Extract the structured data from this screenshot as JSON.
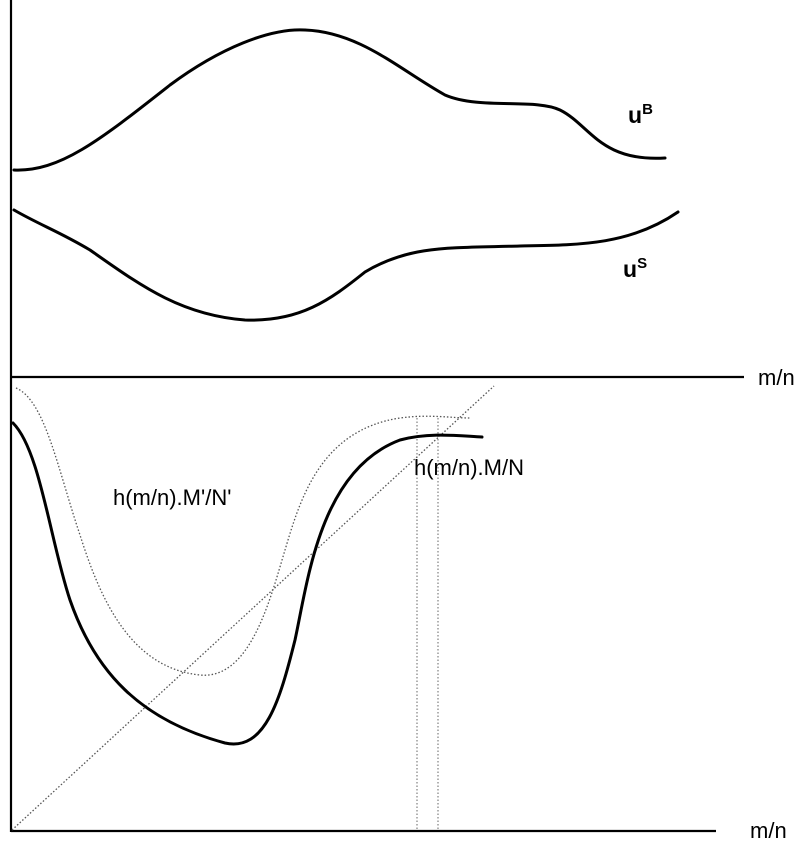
{
  "top_panel": {
    "x_axis_label": "m/n",
    "curve_uB": {
      "base": "u",
      "sup": "B"
    },
    "curve_uS": {
      "base": "u",
      "sup": "S"
    }
  },
  "bottom_panel": {
    "x_axis_label": "m/n",
    "dotted_curve_label": "h(m/n).M'/N'",
    "solid_curve_label": "h(m/n).M/N"
  }
}
